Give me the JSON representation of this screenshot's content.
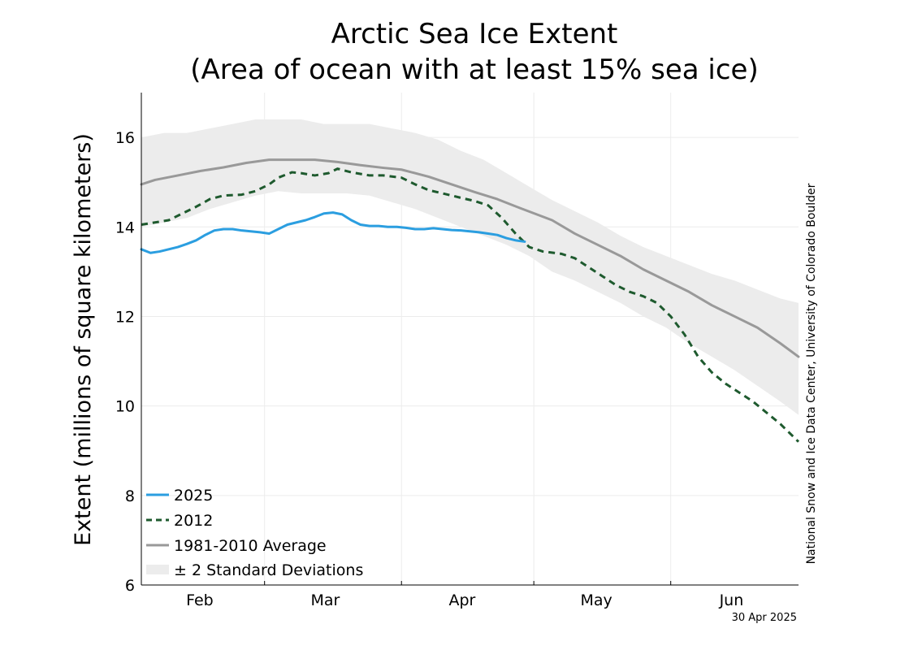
{
  "chart_data": {
    "type": "line",
    "title": "Arctic Sea Ice Extent",
    "subtitle": "(Area of ocean with at least 15% sea ice)",
    "xlabel": "",
    "ylabel": "Extent (millions of square kilometers)",
    "xlim": [
      0,
      144
    ],
    "ylim": [
      6,
      17
    ],
    "yticks": [
      6,
      8,
      10,
      12,
      14,
      16
    ],
    "month_boundaries": [
      27,
      57,
      86,
      116
    ],
    "month_labels": [
      {
        "label": "Feb",
        "x": 12.8
      },
      {
        "label": "Mar",
        "x": 40.3
      },
      {
        "label": "Apr",
        "x": 70.3
      },
      {
        "label": "May",
        "x": 99.7
      },
      {
        "label": "Jun",
        "x": 129.3
      }
    ],
    "grid": true,
    "legend_position": "bottom-left",
    "legend": [
      "2025",
      "2012",
      "1981-2010 Average",
      "± 2 Standard Deviations"
    ],
    "credit": "National Snow and Ice Data Center, University of Colorado Boulder",
    "date_label": "30 Apr 2025",
    "series": [
      {
        "name": "± 2 Standard Deviations",
        "style": "band",
        "color": "#ececec",
        "x": [
          0,
          5,
          10,
          15,
          20,
          25,
          30,
          35,
          40,
          45,
          50,
          55,
          60,
          65,
          70,
          75,
          80,
          85,
          90,
          95,
          100,
          105,
          110,
          115,
          120,
          125,
          130,
          135,
          140,
          144
        ],
        "upper": [
          16.0,
          16.1,
          16.1,
          16.2,
          16.3,
          16.4,
          16.4,
          16.4,
          16.3,
          16.3,
          16.3,
          16.2,
          16.1,
          15.95,
          15.7,
          15.5,
          15.2,
          14.9,
          14.6,
          14.35,
          14.1,
          13.8,
          13.55,
          13.35,
          13.15,
          12.95,
          12.8,
          12.6,
          12.4,
          12.3
        ],
        "lower": [
          14.0,
          14.1,
          14.2,
          14.4,
          14.55,
          14.7,
          14.8,
          14.75,
          14.75,
          14.75,
          14.7,
          14.55,
          14.4,
          14.2,
          14.0,
          13.8,
          13.6,
          13.35,
          13.0,
          12.8,
          12.55,
          12.3,
          12.0,
          11.75,
          11.4,
          11.1,
          10.8,
          10.45,
          10.1,
          9.8
        ]
      },
      {
        "name": "1981-2010 Average",
        "style": "solid",
        "color": "#999999",
        "x": [
          0,
          3,
          8,
          13,
          18,
          23,
          28,
          33,
          38,
          43,
          48,
          53,
          57,
          63,
          68,
          73,
          78,
          83,
          90,
          95,
          100,
          105,
          110,
          115,
          120,
          125,
          130,
          135,
          140,
          144
        ],
        "values": [
          14.95,
          15.05,
          15.15,
          15.25,
          15.33,
          15.43,
          15.5,
          15.5,
          15.5,
          15.45,
          15.38,
          15.32,
          15.28,
          15.12,
          14.95,
          14.78,
          14.62,
          14.42,
          14.15,
          13.85,
          13.6,
          13.35,
          13.05,
          12.8,
          12.55,
          12.25,
          12.0,
          11.75,
          11.4,
          11.1
        ]
      },
      {
        "name": "2012",
        "style": "dashed",
        "color": "#1e5a2e",
        "x": [
          0,
          3,
          6,
          9,
          12,
          15,
          18,
          22,
          25,
          28,
          30,
          33,
          35,
          38,
          41,
          43,
          46,
          50,
          53,
          57,
          60,
          63,
          66,
          70,
          73,
          76,
          79,
          82,
          85,
          88,
          92,
          95,
          98,
          101,
          104,
          107,
          110,
          113,
          116,
          119,
          122,
          125,
          128,
          131,
          134,
          137,
          140,
          142,
          144
        ],
        "values": [
          14.05,
          14.1,
          14.15,
          14.3,
          14.45,
          14.62,
          14.7,
          14.72,
          14.8,
          14.95,
          15.1,
          15.22,
          15.2,
          15.15,
          15.2,
          15.3,
          15.22,
          15.15,
          15.15,
          15.1,
          14.95,
          14.82,
          14.75,
          14.65,
          14.58,
          14.48,
          14.2,
          13.85,
          13.55,
          13.45,
          13.4,
          13.3,
          13.1,
          12.9,
          12.7,
          12.55,
          12.45,
          12.3,
          12.0,
          11.6,
          11.1,
          10.75,
          10.5,
          10.3,
          10.1,
          9.85,
          9.6,
          9.4,
          9.2
        ]
      },
      {
        "name": "2025",
        "style": "solid",
        "color": "#2b9ee0",
        "x": [
          0,
          2,
          4,
          6,
          8,
          10,
          12,
          14,
          16,
          18,
          20,
          22,
          24,
          26,
          28,
          30,
          32,
          34,
          36,
          38,
          40,
          42,
          44,
          46,
          48,
          50,
          52,
          54,
          56,
          58,
          60,
          62,
          64,
          66,
          68,
          70,
          72,
          74,
          76,
          78,
          80,
          82,
          84
        ],
        "values": [
          13.5,
          13.42,
          13.45,
          13.5,
          13.55,
          13.62,
          13.7,
          13.82,
          13.92,
          13.95,
          13.95,
          13.92,
          13.9,
          13.88,
          13.85,
          13.95,
          14.05,
          14.1,
          14.15,
          14.22,
          14.3,
          14.32,
          14.28,
          14.15,
          14.05,
          14.02,
          14.02,
          14.0,
          14.0,
          13.98,
          13.95,
          13.95,
          13.97,
          13.95,
          13.93,
          13.92,
          13.9,
          13.88,
          13.85,
          13.82,
          13.75,
          13.7,
          13.67
        ]
      }
    ]
  }
}
